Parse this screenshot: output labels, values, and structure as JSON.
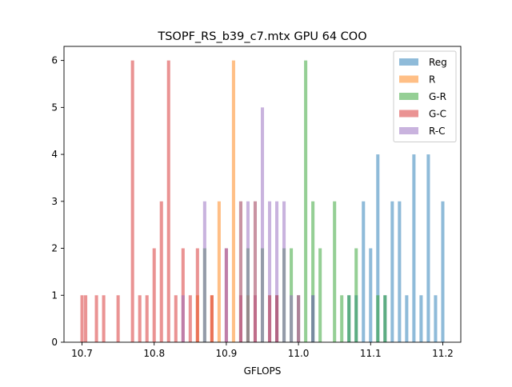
{
  "chart_data": {
    "type": "bar",
    "title": "TSOPF_RS_b39_c7.mtx GPU 64 COO",
    "xlabel": "GFLOPS",
    "ylabel": "",
    "xlim": [
      10.675,
      11.225
    ],
    "ylim": [
      0,
      6.3
    ],
    "bin_width": 0.005,
    "grid": false,
    "legend_position": "top-right",
    "x_ticks": [
      {
        "value": 10.7,
        "label": "10.7"
      },
      {
        "value": 10.8,
        "label": "10.8"
      },
      {
        "value": 10.9,
        "label": "10.9"
      },
      {
        "value": 11.0,
        "label": "11.0"
      },
      {
        "value": 11.1,
        "label": "11.1"
      },
      {
        "value": 11.2,
        "label": "11.2"
      }
    ],
    "y_ticks": [
      {
        "value": 0,
        "label": "0"
      },
      {
        "value": 1,
        "label": "1"
      },
      {
        "value": 2,
        "label": "2"
      },
      {
        "value": 3,
        "label": "3"
      },
      {
        "value": 4,
        "label": "4"
      },
      {
        "value": 5,
        "label": "5"
      },
      {
        "value": 6,
        "label": "6"
      }
    ],
    "series": [
      {
        "name": "Reg",
        "color": "#1f77b4",
        "bins": [
          {
            "x": 10.97,
            "count": 1
          },
          {
            "x": 11.0,
            "count": 1
          },
          {
            "x": 11.02,
            "count": 1
          },
          {
            "x": 11.07,
            "count": 1
          },
          {
            "x": 11.08,
            "count": 1
          },
          {
            "x": 11.09,
            "count": 3
          },
          {
            "x": 11.1,
            "count": 2
          },
          {
            "x": 11.11,
            "count": 4
          },
          {
            "x": 11.12,
            "count": 1
          },
          {
            "x": 11.13,
            "count": 3
          },
          {
            "x": 11.14,
            "count": 3
          },
          {
            "x": 11.15,
            "count": 1
          },
          {
            "x": 11.16,
            "count": 4
          },
          {
            "x": 11.17,
            "count": 1
          },
          {
            "x": 11.18,
            "count": 4
          },
          {
            "x": 11.19,
            "count": 1
          },
          {
            "x": 11.2,
            "count": 3
          }
        ]
      },
      {
        "name": "R",
        "color": "#ff7f0e",
        "bins": [
          {
            "x": 10.86,
            "count": 1
          },
          {
            "x": 10.88,
            "count": 1
          },
          {
            "x": 10.89,
            "count": 3
          },
          {
            "x": 10.91,
            "count": 6
          },
          {
            "x": 10.92,
            "count": 3
          },
          {
            "x": 10.93,
            "count": 1
          },
          {
            "x": 10.94,
            "count": 3
          },
          {
            "x": 10.96,
            "count": 1
          },
          {
            "x": 10.97,
            "count": 1
          },
          {
            "x": 11.0,
            "count": 1
          }
        ]
      },
      {
        "name": "G-R",
        "color": "#2ca02c",
        "bins": [
          {
            "x": 10.87,
            "count": 2
          },
          {
            "x": 10.93,
            "count": 2
          },
          {
            "x": 10.95,
            "count": 2
          },
          {
            "x": 10.98,
            "count": 2
          },
          {
            "x": 10.99,
            "count": 2
          },
          {
            "x": 11.01,
            "count": 6
          },
          {
            "x": 11.02,
            "count": 3
          },
          {
            "x": 11.03,
            "count": 2
          },
          {
            "x": 11.05,
            "count": 3
          },
          {
            "x": 11.06,
            "count": 1
          },
          {
            "x": 11.07,
            "count": 1
          },
          {
            "x": 11.08,
            "count": 2
          },
          {
            "x": 11.11,
            "count": 1
          },
          {
            "x": 11.12,
            "count": 1
          }
        ]
      },
      {
        "name": "G-C",
        "color": "#d62728",
        "bins": [
          {
            "x": 10.7,
            "count": 1
          },
          {
            "x": 10.705,
            "count": 1
          },
          {
            "x": 10.72,
            "count": 1
          },
          {
            "x": 10.73,
            "count": 1
          },
          {
            "x": 10.75,
            "count": 1
          },
          {
            "x": 10.77,
            "count": 6
          },
          {
            "x": 10.78,
            "count": 1
          },
          {
            "x": 10.79,
            "count": 1
          },
          {
            "x": 10.8,
            "count": 2
          },
          {
            "x": 10.81,
            "count": 3
          },
          {
            "x": 10.82,
            "count": 6
          },
          {
            "x": 10.83,
            "count": 1
          },
          {
            "x": 10.84,
            "count": 2
          },
          {
            "x": 10.85,
            "count": 1
          },
          {
            "x": 10.86,
            "count": 2
          },
          {
            "x": 10.88,
            "count": 1
          },
          {
            "x": 10.9,
            "count": 2
          },
          {
            "x": 10.92,
            "count": 1
          },
          {
            "x": 10.94,
            "count": 1
          },
          {
            "x": 10.96,
            "count": 1
          },
          {
            "x": 10.97,
            "count": 1
          }
        ]
      },
      {
        "name": "R-C",
        "color": "#9467bd",
        "bins": [
          {
            "x": 10.84,
            "count": 1
          },
          {
            "x": 10.87,
            "count": 3
          },
          {
            "x": 10.9,
            "count": 2
          },
          {
            "x": 10.92,
            "count": 3
          },
          {
            "x": 10.93,
            "count": 3
          },
          {
            "x": 10.94,
            "count": 3
          },
          {
            "x": 10.95,
            "count": 5
          },
          {
            "x": 10.96,
            "count": 3
          },
          {
            "x": 10.97,
            "count": 3
          },
          {
            "x": 10.98,
            "count": 3
          },
          {
            "x": 10.99,
            "count": 1
          },
          {
            "x": 11.0,
            "count": 1
          },
          {
            "x": 11.02,
            "count": 1
          }
        ]
      }
    ]
  }
}
